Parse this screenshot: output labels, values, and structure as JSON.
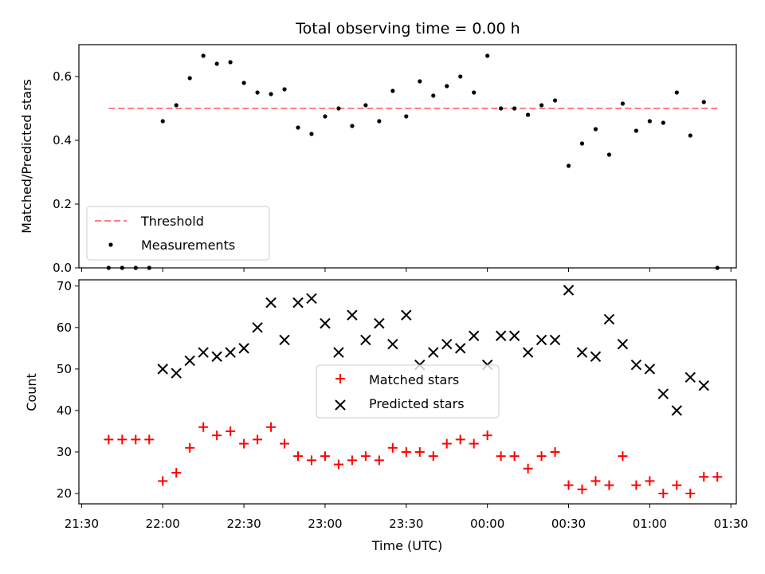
{
  "title": "Total observing time = 0.00 h",
  "chart_data": [
    {
      "type": "scatter",
      "panel": "top",
      "ylabel": "Matched/Predicted stars",
      "xlabel": "",
      "xlim": [
        "21:29",
        "01:32"
      ],
      "ylim": [
        0.0,
        0.7
      ],
      "yticks": [
        0.0,
        0.2,
        0.4,
        0.6
      ],
      "ytick_labels": [
        "0.0",
        "0.2",
        "0.4",
        "0.6"
      ],
      "legend_position": "lower-left",
      "threshold": {
        "name": "Threshold",
        "y": 0.5,
        "x_start": "21:40",
        "x_end": "01:25",
        "color": "#ff7f7f",
        "style": "dashed"
      },
      "series": [
        {
          "name": "Measurements",
          "color": "#000000",
          "marker": "dot",
          "x": [
            "21:40",
            "21:45",
            "21:50",
            "21:55",
            "22:00",
            "22:05",
            "22:10",
            "22:15",
            "22:20",
            "22:25",
            "22:30",
            "22:35",
            "22:40",
            "22:45",
            "22:50",
            "22:55",
            "23:00",
            "23:05",
            "23:10",
            "23:15",
            "23:20",
            "23:25",
            "23:30",
            "23:35",
            "23:40",
            "23:45",
            "23:50",
            "23:55",
            "00:00",
            "00:05",
            "00:10",
            "00:15",
            "00:20",
            "00:25",
            "00:30",
            "00:35",
            "00:40",
            "00:45",
            "00:50",
            "00:55",
            "01:00",
            "01:05",
            "01:10",
            "01:15",
            "01:20",
            "01:25"
          ],
          "y": [
            0.0,
            0.0,
            0.0,
            0.0,
            0.46,
            0.51,
            0.595,
            0.665,
            0.64,
            0.645,
            0.58,
            0.55,
            0.545,
            0.56,
            0.44,
            0.42,
            0.475,
            0.5,
            0.445,
            0.51,
            0.46,
            0.555,
            0.475,
            0.585,
            0.54,
            0.57,
            0.6,
            0.55,
            0.665,
            0.5,
            0.5,
            0.48,
            0.51,
            0.525,
            0.32,
            0.39,
            0.435,
            0.355,
            0.515,
            0.43,
            0.46,
            0.455,
            0.55,
            0.415,
            0.52,
            0.0
          ]
        }
      ]
    },
    {
      "type": "scatter",
      "panel": "bottom",
      "xlabel": "Time (UTC)",
      "ylabel": "Count",
      "xlim": [
        "21:29",
        "01:32"
      ],
      "ylim": [
        17.5,
        71.5
      ],
      "xticks": [
        "21:30",
        "22:00",
        "22:30",
        "23:00",
        "23:30",
        "00:00",
        "00:30",
        "01:00",
        "01:30"
      ],
      "yticks": [
        20,
        30,
        40,
        50,
        60,
        70
      ],
      "ytick_labels": [
        "20",
        "30",
        "40",
        "50",
        "60",
        "70"
      ],
      "legend_position": "center",
      "series": [
        {
          "name": "Matched stars",
          "color": "#ff0000",
          "marker": "plus",
          "x": [
            "21:40",
            "21:45",
            "21:50",
            "21:55",
            "22:00",
            "22:05",
            "22:10",
            "22:15",
            "22:20",
            "22:25",
            "22:30",
            "22:35",
            "22:40",
            "22:45",
            "22:50",
            "22:55",
            "23:00",
            "23:05",
            "23:10",
            "23:15",
            "23:20",
            "23:25",
            "23:30",
            "23:35",
            "23:40",
            "23:45",
            "23:50",
            "23:55",
            "00:00",
            "00:05",
            "00:10",
            "00:15",
            "00:20",
            "00:25",
            "00:30",
            "00:35",
            "00:40",
            "00:45",
            "00:50",
            "00:55",
            "01:00",
            "01:05",
            "01:10",
            "01:15",
            "01:20",
            "01:25"
          ],
          "y": [
            33,
            33,
            33,
            33,
            23,
            25,
            31,
            36,
            34,
            35,
            32,
            33,
            36,
            32,
            29,
            28,
            29,
            27,
            28,
            29,
            28,
            31,
            30,
            30,
            29,
            32,
            33,
            32,
            34,
            29,
            29,
            26,
            29,
            30,
            22,
            21,
            23,
            22,
            29,
            22,
            23,
            20,
            22,
            20,
            24,
            24
          ]
        },
        {
          "name": "Predicted stars",
          "color": "#000000",
          "marker": "x",
          "x": [
            "22:00",
            "22:05",
            "22:10",
            "22:15",
            "22:20",
            "22:25",
            "22:30",
            "22:35",
            "22:40",
            "22:45",
            "22:50",
            "22:55",
            "23:00",
            "23:05",
            "23:10",
            "23:15",
            "23:20",
            "23:25",
            "23:30",
            "23:35",
            "23:40",
            "23:45",
            "23:50",
            "23:55",
            "00:00",
            "00:05",
            "00:10",
            "00:15",
            "00:20",
            "00:25",
            "00:30",
            "00:35",
            "00:40",
            "00:45",
            "00:50",
            "00:55",
            "01:00",
            "01:05",
            "01:10",
            "01:15",
            "01:20"
          ],
          "y": [
            50,
            49,
            52,
            54,
            53,
            54,
            55,
            60,
            66,
            57,
            66,
            67,
            61,
            54,
            63,
            57,
            61,
            56,
            63,
            51,
            54,
            56,
            55,
            58,
            51,
            58,
            58,
            54,
            57,
            57,
            69,
            54,
            53,
            62,
            56,
            51,
            50,
            44,
            40,
            48,
            46
          ]
        }
      ]
    }
  ]
}
